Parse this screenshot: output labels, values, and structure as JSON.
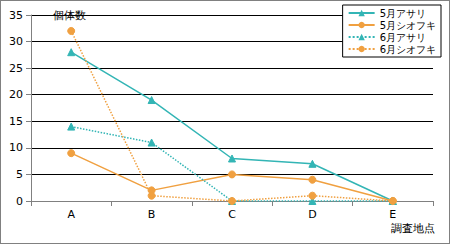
{
  "chart_data": {
    "type": "line",
    "y_label": "個体数",
    "x_label": "調査地点",
    "categories": [
      "A",
      "B",
      "C",
      "D",
      "E"
    ],
    "series": [
      {
        "name": "5月アサリ",
        "color": "#33b5b5",
        "marker": "triangle",
        "line_style": "solid",
        "values": [
          28,
          19,
          8,
          7,
          0
        ]
      },
      {
        "name": "5月シオフキ",
        "color": "#f0a040",
        "marker": "circle",
        "line_style": "solid",
        "values": [
          9,
          2,
          5,
          4,
          0
        ]
      },
      {
        "name": "6月アサリ",
        "color": "#33b5b5",
        "marker": "triangle",
        "line_style": "dotted",
        "values": [
          14,
          11,
          0,
          0,
          0
        ]
      },
      {
        "name": "6月シオフキ",
        "color": "#f0a040",
        "marker": "circle",
        "line_style": "dotted",
        "values": [
          32,
          1,
          0,
          1,
          0
        ]
      }
    ],
    "ylim": [
      0,
      35
    ],
    "yticks": [
      0,
      5,
      10,
      15,
      20,
      25,
      30,
      35
    ],
    "grid": true,
    "legend": "upper right"
  }
}
